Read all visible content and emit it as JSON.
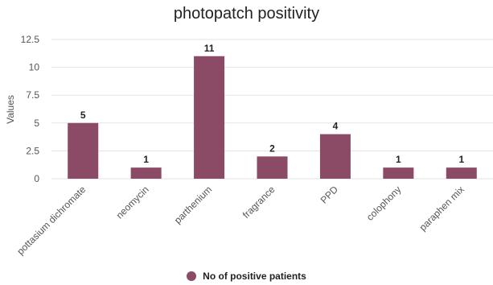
{
  "chart_data": {
    "type": "bar",
    "title": "photopatch positivity",
    "xlabel": "",
    "ylabel": "Values",
    "categories": [
      "pottasium dichromate",
      "neomycin",
      "parthenium",
      "fragrance",
      "PPD",
      "colophony",
      "paraphen mix"
    ],
    "series": [
      {
        "name": "No of positive patients",
        "values": [
          5,
          1,
          11,
          2,
          4,
          1,
          1
        ],
        "color": "#8b4a65"
      }
    ],
    "ylim": [
      0,
      12.5
    ],
    "yticks": [
      "0",
      "2.5",
      "5",
      "7.5",
      "10",
      "12.5"
    ],
    "ytick_values": [
      0,
      2.5,
      5,
      7.5,
      10,
      12.5
    ],
    "data_labels": [
      "5",
      "1",
      "11",
      "2",
      "4",
      "1",
      "1"
    ],
    "grid": true,
    "legend_position": "bottom"
  }
}
